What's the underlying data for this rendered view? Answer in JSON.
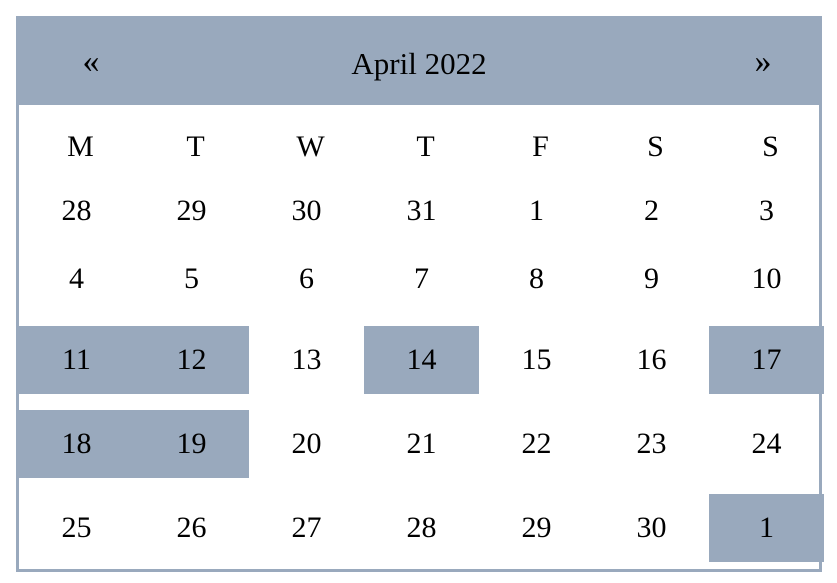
{
  "calendar": {
    "title": "April 2022",
    "prev_label": "«",
    "next_label": "»",
    "weekdays": [
      "M",
      "T",
      "W",
      "T",
      "F",
      "S",
      "S"
    ],
    "highlight_color": "#99a9bd",
    "weeks": [
      [
        {
          "label": "28",
          "highlighted": false
        },
        {
          "label": "29",
          "highlighted": false
        },
        {
          "label": "30",
          "highlighted": false
        },
        {
          "label": "31",
          "highlighted": false
        },
        {
          "label": "1",
          "highlighted": false
        },
        {
          "label": "2",
          "highlighted": false
        },
        {
          "label": "3",
          "highlighted": false
        }
      ],
      [
        {
          "label": "4",
          "highlighted": false
        },
        {
          "label": "5",
          "highlighted": false
        },
        {
          "label": "6",
          "highlighted": false
        },
        {
          "label": "7",
          "highlighted": false
        },
        {
          "label": "8",
          "highlighted": false
        },
        {
          "label": "9",
          "highlighted": false
        },
        {
          "label": "10",
          "highlighted": false
        }
      ],
      [
        {
          "label": "11",
          "highlighted": true
        },
        {
          "label": "12",
          "highlighted": true
        },
        {
          "label": "13",
          "highlighted": false
        },
        {
          "label": "14",
          "highlighted": true
        },
        {
          "label": "15",
          "highlighted": false
        },
        {
          "label": "16",
          "highlighted": false
        },
        {
          "label": "17",
          "highlighted": true
        }
      ],
      [
        {
          "label": "18",
          "highlighted": true
        },
        {
          "label": "19",
          "highlighted": true
        },
        {
          "label": "20",
          "highlighted": false
        },
        {
          "label": "21",
          "highlighted": false
        },
        {
          "label": "22",
          "highlighted": false
        },
        {
          "label": "23",
          "highlighted": false
        },
        {
          "label": "24",
          "highlighted": false
        }
      ],
      [
        {
          "label": "25",
          "highlighted": false
        },
        {
          "label": "26",
          "highlighted": false
        },
        {
          "label": "27",
          "highlighted": false
        },
        {
          "label": "28",
          "highlighted": false
        },
        {
          "label": "29",
          "highlighted": false
        },
        {
          "label": "30",
          "highlighted": false
        },
        {
          "label": "1",
          "highlighted": true
        }
      ]
    ]
  }
}
